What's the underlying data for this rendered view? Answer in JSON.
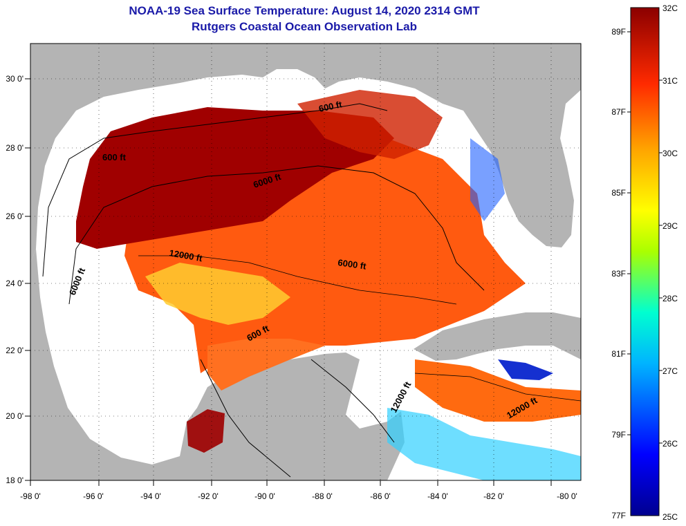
{
  "header": {
    "title_line1": "NOAA-19 Sea Surface Temperature:  August 14, 2020 2314 GMT",
    "title_line2": "Rutgers Coastal Ocean Observation Lab"
  },
  "map": {
    "lon_ticks": [
      "-98 0'",
      "-96 0'",
      "-94 0'",
      "-92 0'",
      "-90 0'",
      "-88 0'",
      "-86 0'",
      "-84 0'",
      "-82 0'",
      "-80 0'"
    ],
    "lat_ticks": [
      "30 0'",
      "28 0'",
      "26 0'",
      "24 0'",
      "22 0'",
      "20 0'",
      "18 0'"
    ],
    "contour_labels": [
      "600 ft",
      "600 ft",
      "6000 ft",
      "12000 ft",
      "6000 ft",
      "6000 ft",
      "600 ft",
      "12000 ft",
      "12000 ft"
    ],
    "colors": {
      "land": "#b4b4b4",
      "no_data": "#ffffff",
      "hot": "#8b0000"
    }
  },
  "colorbar": {
    "celsius_labels": [
      "32C",
      "31C",
      "30C",
      "29C",
      "28C",
      "27C",
      "26C",
      "25C"
    ],
    "fahrenheit_labels": [
      "89F",
      "87F",
      "85F",
      "83F",
      "81F",
      "79F",
      "77F"
    ]
  }
}
